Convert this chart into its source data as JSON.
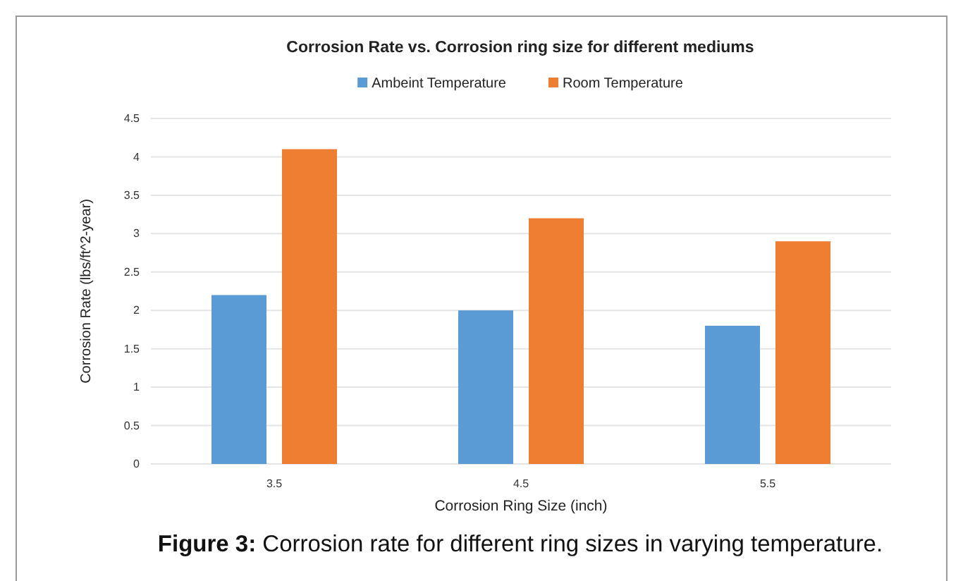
{
  "chart_data": {
    "type": "bar",
    "title": "Corrosion Rate vs. Corrosion ring size for different mediums",
    "xlabel": "Corrosion Ring Size (inch)",
    "ylabel": "Corrosion Rate (lbs/ft^2-year)",
    "categories": [
      "3.5",
      "4.5",
      "5.5"
    ],
    "series": [
      {
        "name": "Ambeint Temperature",
        "color": "#5b9bd5",
        "values": [
          2.2,
          2.0,
          1.8
        ]
      },
      {
        "name": "Room Temperature",
        "color": "#ed7d31",
        "values": [
          4.1,
          3.2,
          2.9
        ]
      }
    ],
    "ylim": [
      0,
      4.5
    ],
    "yticks": [
      0,
      0.5,
      1,
      1.5,
      2,
      2.5,
      3,
      3.5,
      4,
      4.5
    ],
    "grid": "y",
    "legend": "top",
    "annotations": [
      "Figure 3: Corrosion rate for different ring sizes in varying temperature."
    ]
  }
}
